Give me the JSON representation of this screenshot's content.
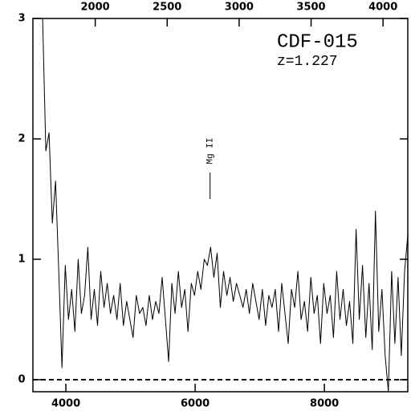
{
  "chart_data": {
    "type": "line",
    "title": "CDF-015",
    "subtitle": "z=1.227",
    "annotations": [
      {
        "text": "Mg II",
        "x": 6231
      }
    ],
    "x": [
      3640,
      3690,
      3740,
      3790,
      3840,
      3890,
      3940,
      3990,
      4040,
      4090,
      4140,
      4190,
      4240,
      4290,
      4340,
      4390,
      4440,
      4490,
      4540,
      4590,
      4640,
      4690,
      4740,
      4790,
      4840,
      4890,
      4940,
      4990,
      5040,
      5090,
      5140,
      5190,
      5240,
      5290,
      5340,
      5390,
      5440,
      5490,
      5540,
      5590,
      5640,
      5690,
      5740,
      5790,
      5840,
      5890,
      5940,
      5990,
      6040,
      6090,
      6140,
      6190,
      6240,
      6290,
      6340,
      6390,
      6440,
      6490,
      6540,
      6590,
      6640,
      6690,
      6740,
      6790,
      6840,
      6890,
      6940,
      6990,
      7040,
      7090,
      7140,
      7190,
      7240,
      7290,
      7340,
      7390,
      7440,
      7490,
      7540,
      7590,
      7640,
      7690,
      7740,
      7790,
      7840,
      7890,
      7940,
      7990,
      8040,
      8090,
      8140,
      8190,
      8240,
      8290,
      8340,
      8390,
      8440,
      8490,
      8540,
      8590,
      8640,
      8690,
      8740,
      8790,
      8840,
      8890,
      8940,
      8990,
      9040,
      9090,
      9140,
      9190,
      9240,
      9290
    ],
    "series": [
      {
        "color": "#000000",
        "values": [
          3.0,
          1.9,
          2.05,
          1.3,
          1.65,
          0.9,
          0.1,
          0.95,
          0.5,
          0.75,
          0.4,
          1.0,
          0.55,
          0.7,
          1.1,
          0.5,
          0.75,
          0.45,
          0.9,
          0.6,
          0.8,
          0.55,
          0.7,
          0.5,
          0.8,
          0.45,
          0.65,
          0.5,
          0.35,
          0.7,
          0.55,
          0.6,
          0.45,
          0.7,
          0.5,
          0.65,
          0.55,
          0.85,
          0.5,
          0.15,
          0.8,
          0.55,
          0.9,
          0.6,
          0.75,
          0.4,
          0.8,
          0.7,
          0.9,
          0.75,
          1.0,
          0.95,
          1.1,
          0.85,
          1.05,
          0.6,
          0.9,
          0.7,
          0.85,
          0.65,
          0.8,
          0.7,
          0.6,
          0.75,
          0.55,
          0.8,
          0.65,
          0.5,
          0.75,
          0.45,
          0.7,
          0.6,
          0.75,
          0.4,
          0.8,
          0.55,
          0.3,
          0.75,
          0.6,
          0.9,
          0.5,
          0.65,
          0.4,
          0.85,
          0.55,
          0.7,
          0.3,
          0.8,
          0.55,
          0.7,
          0.35,
          0.9,
          0.5,
          0.75,
          0.45,
          0.65,
          0.3,
          1.25,
          0.5,
          0.95,
          0.35,
          0.8,
          0.25,
          1.4,
          0.4,
          0.75,
          0.2,
          -0.1,
          0.9,
          0.3,
          0.85,
          0.2,
          0.9,
          1.2
        ]
      }
    ],
    "xlim": [
      3490,
      9290
    ],
    "xticks": [
      4000,
      6000,
      8000
    ],
    "x2lim": [
      1567,
      4172
    ],
    "x2ticks": [
      2000,
      2500,
      3000,
      3500,
      4000
    ],
    "ylim": [
      -0.1,
      3
    ],
    "yticks": [
      0,
      1,
      2,
      3
    ],
    "zero_line": true
  }
}
